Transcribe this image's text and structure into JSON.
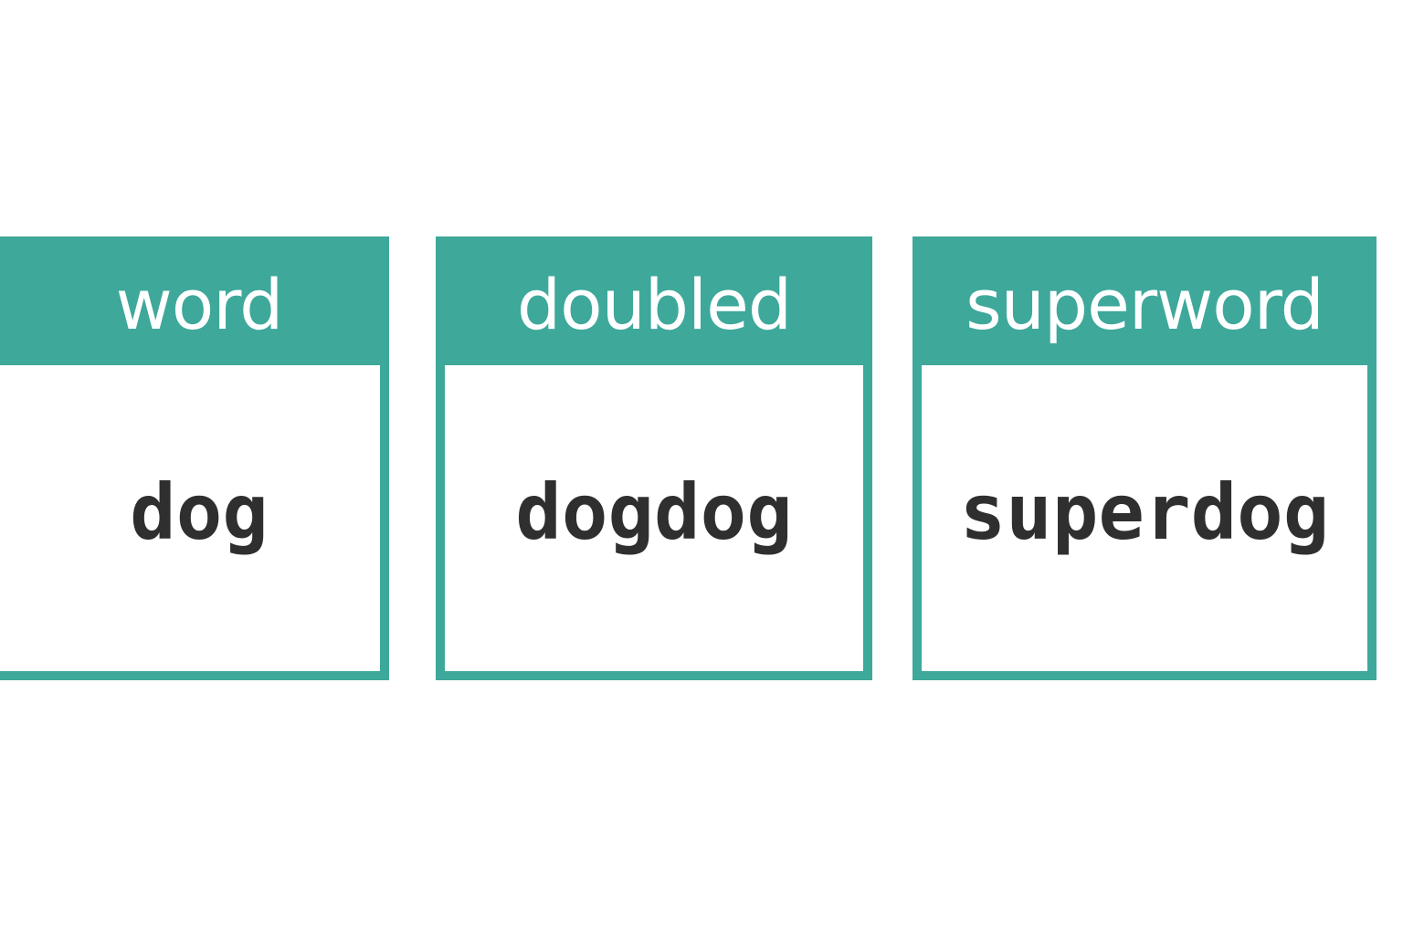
{
  "colors": {
    "accent": "#3ea89b",
    "header_text": "#ffffff",
    "value_text": "#2f2f2f",
    "background": "#ffffff"
  },
  "boxes": [
    {
      "header": "word",
      "value": "dog"
    },
    {
      "header": "doubled",
      "value": "dogdog"
    },
    {
      "header": "superword",
      "value": "superdog"
    }
  ]
}
